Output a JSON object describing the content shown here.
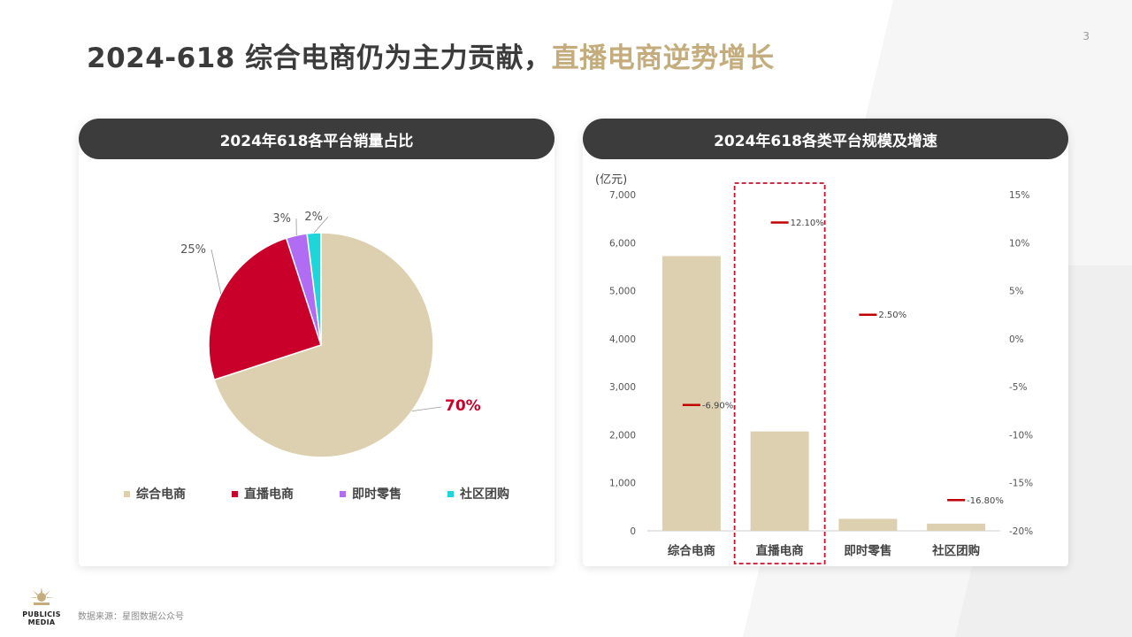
{
  "page": {
    "number": "3"
  },
  "title": {
    "part1": "2024-618  综合电商仍为主力贡献，",
    "part2": "直播电商逆势增长"
  },
  "left_panel": {
    "header": "2024年618各平台销量占比"
  },
  "right_panel": {
    "header": "2024年618各类平台规模及增速",
    "unit": "(亿元)"
  },
  "footer": {
    "source": "数据来源：星图数据公众号",
    "logo_line1": "PUBLICIS",
    "logo_line2": "MEDIA"
  },
  "colors": {
    "beige": "#dcd0b0",
    "red": "#c8002a",
    "purple": "#b06cf2",
    "cyan": "#1ed6d9",
    "gold": "#c4ac7c",
    "dark": "#3c3c3c",
    "growth": "#c00000",
    "highlight": "#c8102e"
  },
  "chart_data": [
    {
      "type": "pie",
      "title": "2024年618各平台销量占比",
      "labels": [
        "综合电商",
        "直播电商",
        "即时零售",
        "社区团购"
      ],
      "values": [
        70,
        25,
        3,
        2
      ],
      "value_labels": [
        "70%",
        "25%",
        "3%",
        "2%"
      ],
      "colors": [
        "#dcd0b0",
        "#c8002a",
        "#b06cf2",
        "#1ed6d9"
      ],
      "legend": "bottom"
    },
    {
      "type": "bar",
      "title": "2024年618各类平台规模及增速",
      "categories": [
        "综合电商",
        "直播电商",
        "即时零售",
        "社区团购"
      ],
      "ylabel": "(亿元)",
      "ylim": [
        0,
        7000
      ],
      "yticks": [
        "0",
        "1,000",
        "2,000",
        "3,000",
        "4,000",
        "5,000",
        "6,000",
        "7,000"
      ],
      "y2lim": [
        -20,
        15
      ],
      "y2ticks": [
        "-20%",
        "-15%",
        "-10%",
        "-5%",
        "0%",
        "5%",
        "10%",
        "15%"
      ],
      "series": [
        {
          "values": [
            5720,
            2070,
            250,
            150
          ]
        },
        {
          "values": [
            -6.9,
            12.1,
            2.5,
            -16.8
          ],
          "labels": [
            "-6.90%",
            "12.10%",
            "2.50%",
            "-16.80%"
          ],
          "axis": "right"
        }
      ],
      "highlight_category": "直播电商",
      "grid": false
    }
  ]
}
